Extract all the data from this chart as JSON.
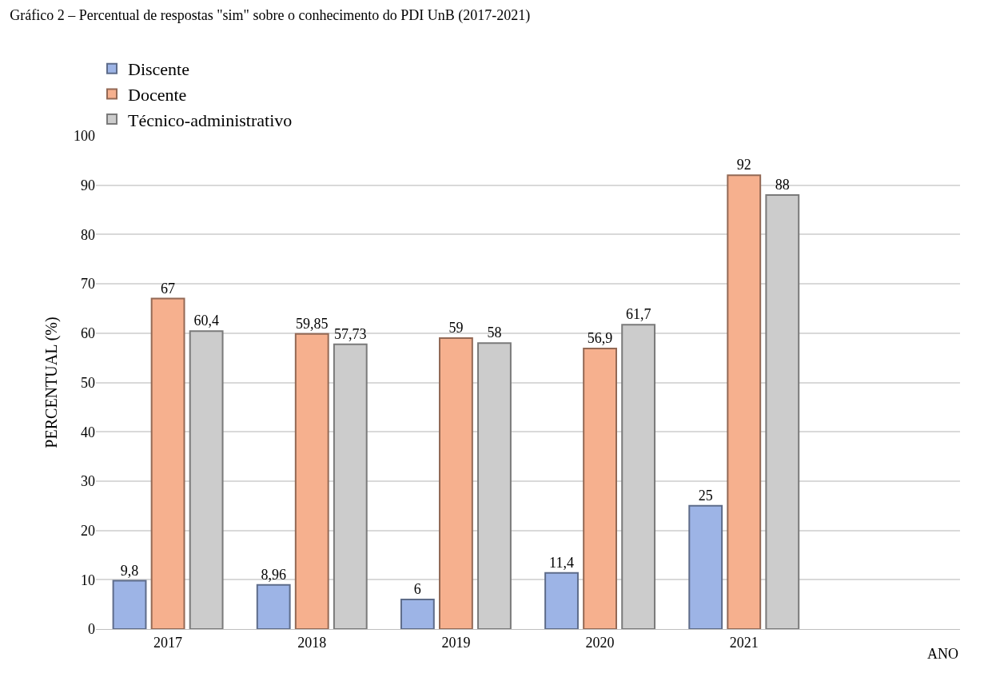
{
  "chart_data": {
    "type": "bar",
    "title": "Gráfico 2 – Percentual de respostas \"sim\" sobre o conhecimento do PDI UnB (2017-2021)",
    "xlabel": "ANO",
    "ylabel": "PERCENTUAL (%)",
    "categories": [
      "2017",
      "2018",
      "2019",
      "2020",
      "2021",
      null
    ],
    "series": [
      {
        "name": "Discente",
        "color": "#9db4e6",
        "values": [
          9.8,
          8.96,
          6,
          11.4,
          25,
          null
        ],
        "value_labels": [
          "9,8",
          "8,96",
          "6",
          "11,4",
          "25",
          null
        ]
      },
      {
        "name": "Docente",
        "color": "#f6b08e",
        "values": [
          67,
          59.85,
          59,
          56.9,
          92,
          null
        ],
        "value_labels": [
          "67",
          "59,85",
          "59",
          "56,9",
          "92",
          null
        ]
      },
      {
        "name": "Técnico-administrativo",
        "color": "#cccccc",
        "values": [
          60.4,
          57.73,
          58,
          61.7,
          88,
          null
        ],
        "value_labels": [
          "60,4",
          "57,73",
          "58",
          "61,7",
          "88",
          null
        ]
      }
    ],
    "ylim": [
      0,
      100
    ],
    "yticks": [
      0,
      10,
      20,
      30,
      40,
      50,
      60,
      70,
      80,
      90,
      100
    ],
    "grid": "y",
    "legend": "top left"
  }
}
